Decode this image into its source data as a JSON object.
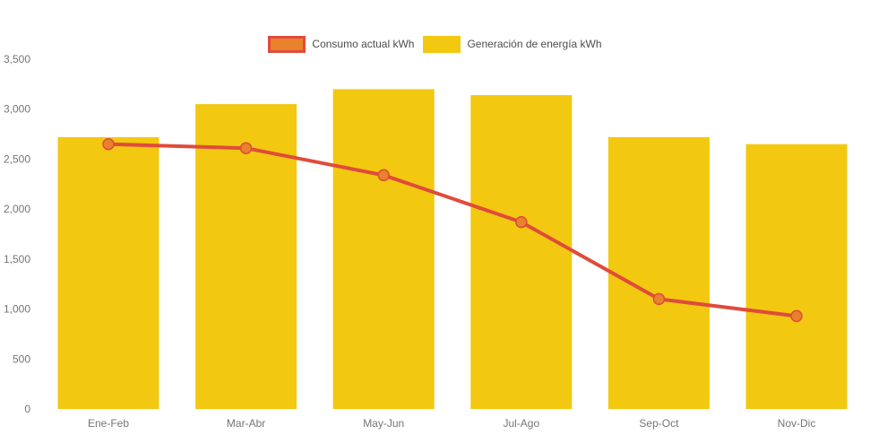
{
  "chart_data": {
    "type": "combo",
    "title": "",
    "xlabel": "",
    "ylabel": "",
    "categories": [
      "Ene-Feb",
      "Mar-Abr",
      "May-Jun",
      "Jul-Ago",
      "Sep-Oct",
      "Nov-Dic"
    ],
    "series": [
      {
        "name": "Generación de energía kWh",
        "type": "bar",
        "values": [
          2720,
          3050,
          3200,
          3140,
          2720,
          2650
        ],
        "color": "#f2c811"
      },
      {
        "name": "Consumo actual kWh",
        "type": "line",
        "values": [
          2650,
          2610,
          2340,
          1870,
          1100,
          930
        ],
        "color": "#e04b3b",
        "marker_color": "#e8822c"
      }
    ],
    "ylim": [
      0,
      3500
    ],
    "yticks": [
      0,
      500,
      1000,
      1500,
      2000,
      2500,
      3000,
      3500
    ],
    "ytick_labels": [
      "0",
      "500",
      "1,000",
      "1,500",
      "2,000",
      "2,500",
      "3,000",
      "3,500"
    ],
    "grid": false,
    "legend_position": "top-center"
  },
  "legend": {
    "items": [
      {
        "label": "Consumo actual kWh",
        "swatch_fill": "#e8822c",
        "swatch_border": "#e04b3b"
      },
      {
        "label": "Generación de energía kWh",
        "swatch_fill": "#f2c811",
        "swatch_border": "#f2c811"
      }
    ]
  },
  "colors": {
    "background": "#ffffff",
    "bar": "#f2c811",
    "line": "#e04b3b",
    "marker": "#e8822c",
    "axis_text": "#757575",
    "legend_text": "#4d4d4d"
  }
}
